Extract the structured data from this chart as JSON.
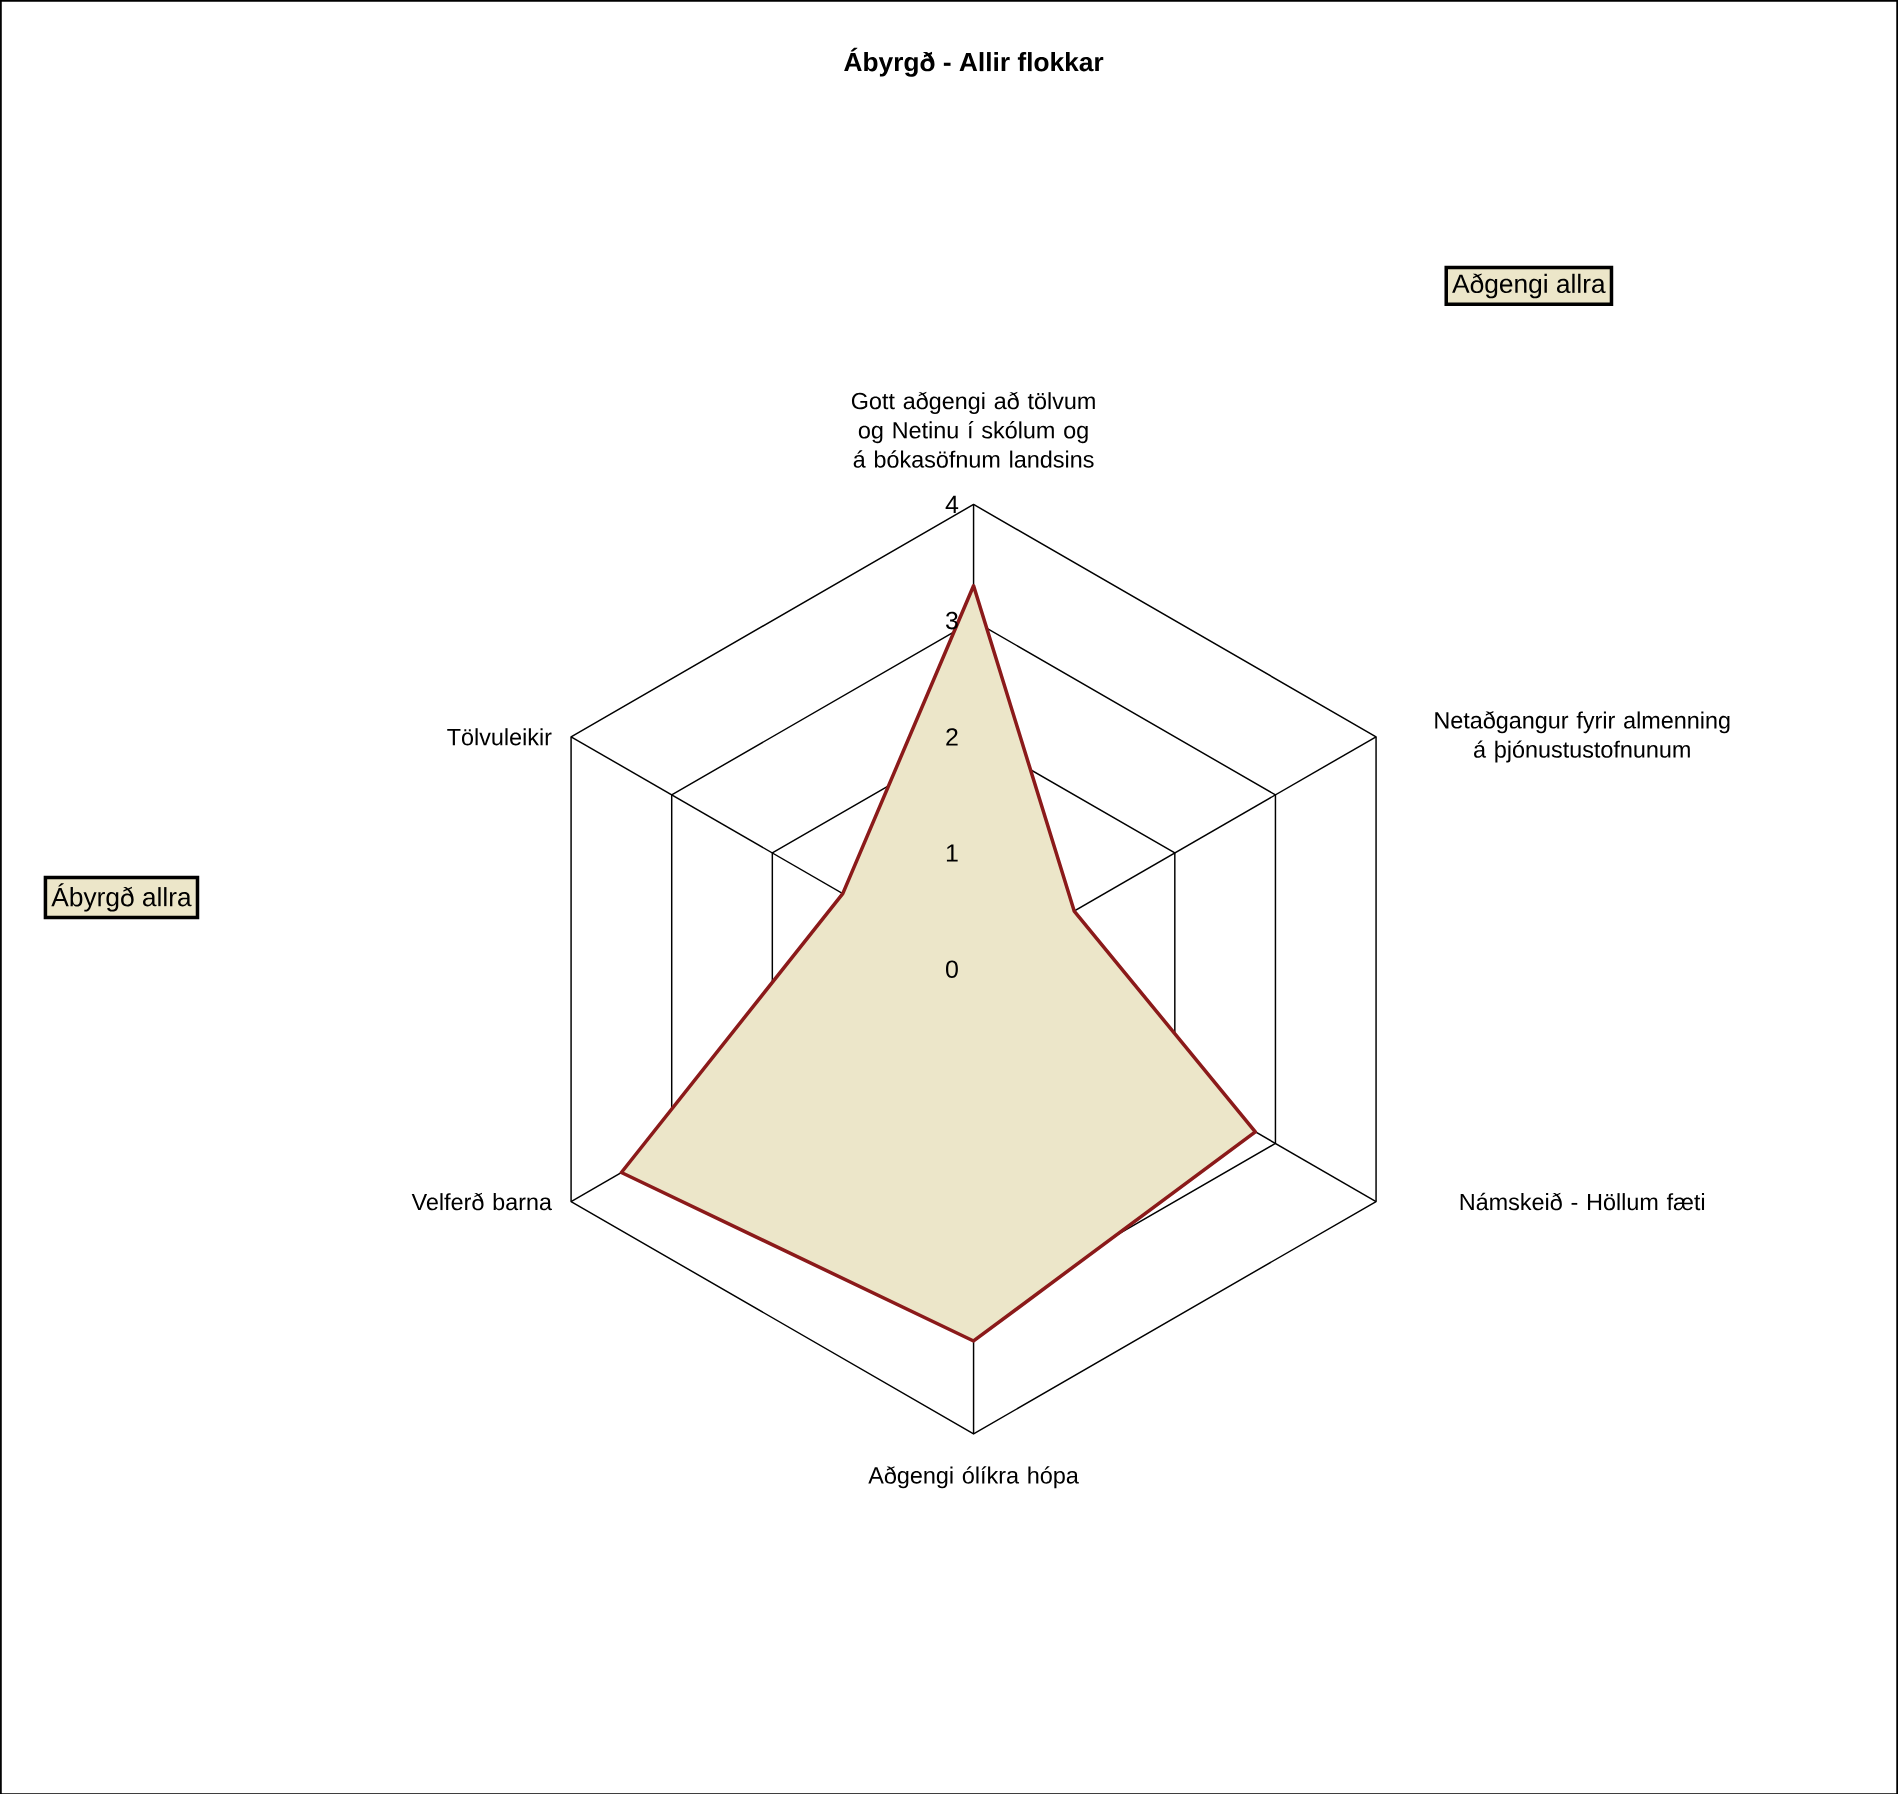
{
  "chart_data": {
    "type": "radar",
    "title": "Ábyrgð - Allir flokkar",
    "categories": [
      "Gott aðgengi að tölvum og Netinu í skólum og á bókasöfnum landsins",
      "Netaðgangur fyrir almenning á þjónustustofnunum",
      "Námskeið - Höllum fæti",
      "Aðgengi ólíkra hópa",
      "Velferð barna",
      "Tölvuleikir"
    ],
    "series": [
      {
        "color": "#8b1a1a",
        "values": [
          3.3,
          1.0,
          2.8,
          3.2,
          3.5,
          1.3
        ]
      }
    ],
    "ylim": [
      0,
      4
    ],
    "yticks": [
      0,
      1,
      2,
      3,
      4
    ],
    "grid": true,
    "annotations": [
      "Aðgengi allra",
      "Ábyrgð allra"
    ]
  }
}
